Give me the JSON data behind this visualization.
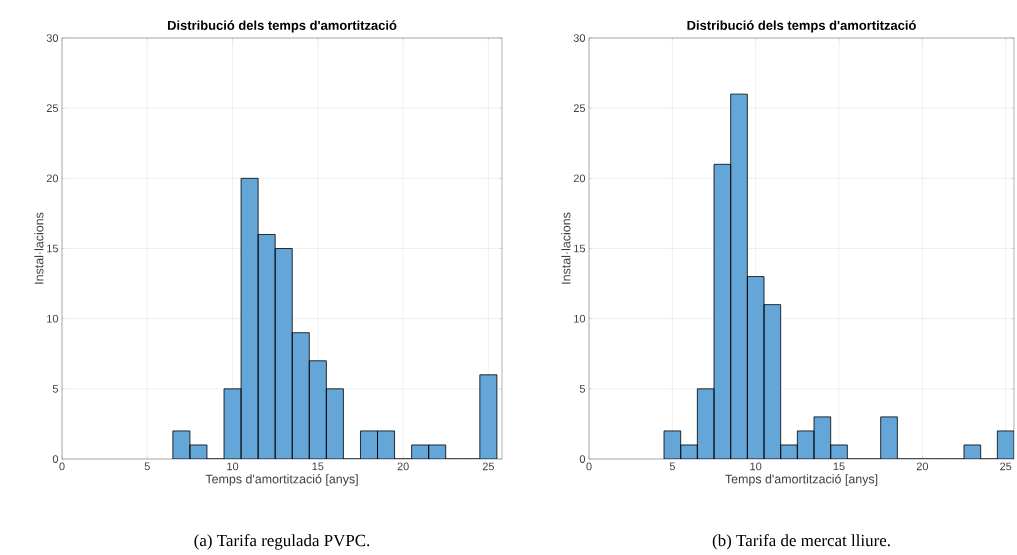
{
  "chart_data": [
    {
      "type": "histogram",
      "title": "Distribució dels temps d'amortització",
      "xlabel": "Temps d'amortització [anys]",
      "ylabel": "Instal·lacions",
      "bins": [
        6.5,
        7.5,
        8.5,
        9.5,
        10.5,
        11.5,
        12.5,
        13.5,
        14.5,
        15.5,
        16.5,
        17.5,
        18.5,
        19.5,
        20.5,
        21.5,
        22.5,
        23.5,
        24.5,
        25.5
      ],
      "values": [
        2,
        1,
        0,
        5,
        20,
        16,
        15,
        9,
        7,
        5,
        0,
        2,
        2,
        0,
        1,
        1,
        0,
        0,
        6
      ],
      "color": "#64a6d8",
      "xlim": [
        0,
        25.8
      ],
      "ylim": [
        0,
        30
      ],
      "xticks": [
        0,
        5,
        10,
        15,
        20,
        25
      ],
      "yticks": [
        0,
        5,
        10,
        15,
        20,
        25,
        30
      ],
      "grid": true,
      "annotations": [
        "(a) Tarifa regulada PVPC."
      ]
    },
    {
      "type": "histogram",
      "title": "Distribució dels temps d'amortització",
      "xlabel": "Temps d'amortització [anys]",
      "ylabel": "Instal·lacions",
      "bins": [
        4.5,
        5.5,
        6.5,
        7.5,
        8.5,
        9.5,
        10.5,
        11.5,
        12.5,
        13.5,
        14.5,
        15.5,
        16.5,
        17.5,
        18.5,
        19.5,
        20.5,
        21.5,
        22.5,
        23.5,
        24.5,
        25.5
      ],
      "values": [
        2,
        1,
        5,
        21,
        26,
        13,
        11,
        1,
        2,
        3,
        1,
        0,
        0,
        3,
        0,
        0,
        0,
        0,
        1,
        0,
        2
      ],
      "color": "#64a6d8",
      "xlim": [
        0,
        25.5
      ],
      "ylim": [
        0,
        30
      ],
      "xticks": [
        0,
        5,
        10,
        15,
        20,
        25
      ],
      "yticks": [
        0,
        5,
        10,
        15,
        20,
        25,
        30
      ],
      "grid": true,
      "annotations": [
        "(b) Tarifa de mercat lliure."
      ]
    }
  ]
}
